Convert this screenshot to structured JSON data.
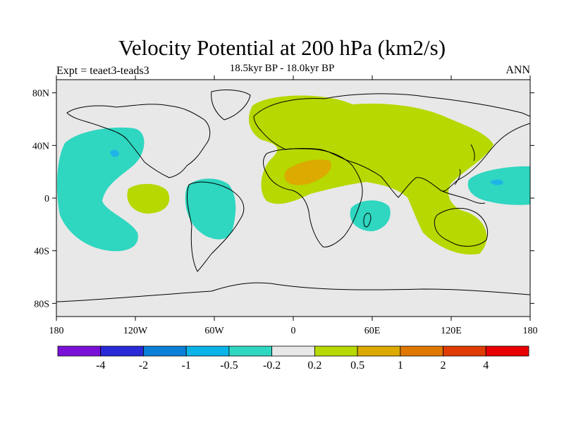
{
  "title": "Velocity Potential at 200 hPa (km2/s)",
  "subtitle": "18.5kyr BP - 18.0kyr BP",
  "experiment_label": "Expt = teaet3-teads3",
  "season_label": "ANN",
  "map": {
    "projection": "equirectangular",
    "lon_range": [
      -180,
      180
    ],
    "lat_range": [
      -90,
      90
    ],
    "x_ticks": [
      "180",
      "120W",
      "60W",
      "0",
      "60E",
      "120E",
      "180"
    ],
    "y_ticks": [
      "80N",
      "40N",
      "0",
      "40S",
      "80S"
    ],
    "background_color": "#e8e8e8",
    "coastline_color": "#000000",
    "regions": [
      {
        "name": "north-pacific-negative",
        "level": "-0.5 to -0.2",
        "color": "#2fd6c0"
      },
      {
        "name": "north-pacific-minimum",
        "level": "-1 to -0.5",
        "color": "#1fb4e8"
      },
      {
        "name": "east-pacific-positive",
        "level": "0.2 to 0.5",
        "color": "#b7d800"
      },
      {
        "name": "south-america-negative",
        "level": "-0.5 to -0.2",
        "color": "#2fd6c0"
      },
      {
        "name": "eurasia-africa-positive",
        "level": "0.2 to 0.5",
        "color": "#b7d800"
      },
      {
        "name": "sahara-maximum",
        "level": "0.5 to 1",
        "color": "#dcaa00"
      },
      {
        "name": "south-atlantic-negative",
        "level": "-0.5 to -0.2",
        "color": "#2fd6c0"
      },
      {
        "name": "west-pacific-negative",
        "level": "-0.5 to -0.2",
        "color": "#2fd6c0"
      },
      {
        "name": "west-pacific-minimum",
        "level": "-1 to -0.5",
        "color": "#1fb4e8"
      }
    ]
  },
  "colorbar": {
    "colors": [
      "#7a10d8",
      "#2a2ad8",
      "#0a80d8",
      "#0ab4e8",
      "#2fd6c0",
      "#e8e8e8",
      "#b7d800",
      "#dcaa00",
      "#e07800",
      "#e03c00",
      "#e80000"
    ],
    "labels": [
      "-4",
      "-2",
      "-1",
      "-0.5",
      "-0.2",
      "0.2",
      "0.5",
      "1",
      "2",
      "4"
    ]
  }
}
